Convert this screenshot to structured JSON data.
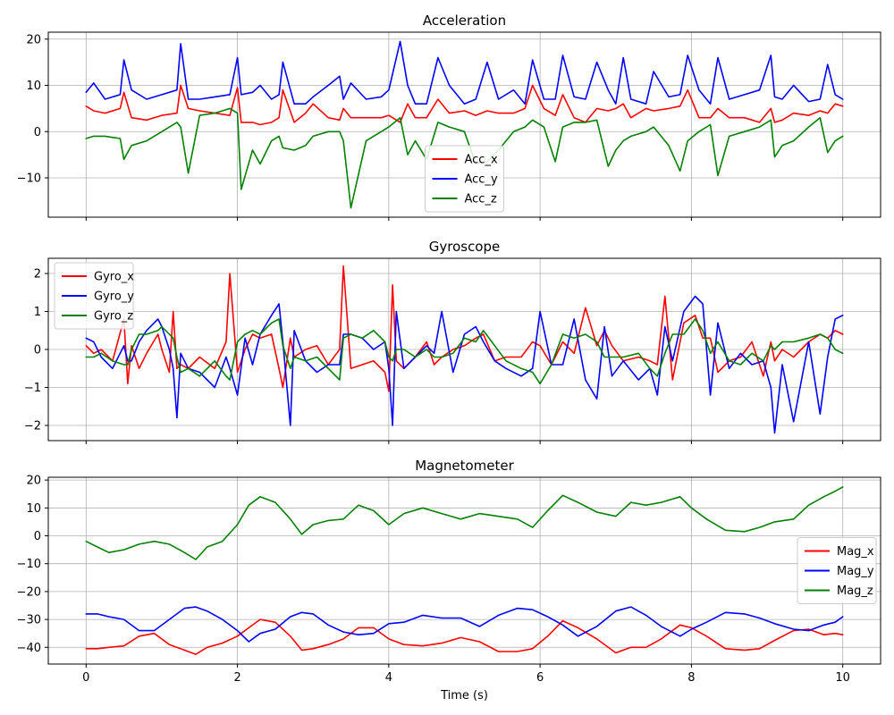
{
  "chart_data": [
    {
      "type": "line",
      "title": "Acceleration",
      "xlabel": "",
      "ylabel": "",
      "xlim": [
        -0.5,
        10.5
      ],
      "ylim": [
        -18.5,
        21.5
      ],
      "xticks": [
        0,
        2,
        4,
        6,
        8,
        10
      ],
      "show_xtick_labels": false,
      "yticks": [
        -10,
        0,
        10,
        20
      ],
      "ytick_labels": [
        "−10",
        "0",
        "10",
        "20"
      ],
      "legend_position": "lower-center",
      "grid": true,
      "x": [
        0,
        0.1,
        0.25,
        0.45,
        0.5,
        0.6,
        0.8,
        1.0,
        1.2,
        1.25,
        1.35,
        1.5,
        1.7,
        1.9,
        2.0,
        2.05,
        2.2,
        2.3,
        2.45,
        2.55,
        2.6,
        2.75,
        2.9,
        3.0,
        3.2,
        3.35,
        3.4,
        3.5,
        3.7,
        3.9,
        4.0,
        4.15,
        4.25,
        4.35,
        4.5,
        4.65,
        4.8,
        5.0,
        5.15,
        5.3,
        5.45,
        5.65,
        5.8,
        5.9,
        6.05,
        6.2,
        6.3,
        6.45,
        6.6,
        6.75,
        6.9,
        7.0,
        7.1,
        7.2,
        7.4,
        7.5,
        7.7,
        7.85,
        7.95,
        8.1,
        8.25,
        8.35,
        8.5,
        8.7,
        8.9,
        9.05,
        9.1,
        9.2,
        9.35,
        9.55,
        9.7,
        9.8,
        9.9,
        10.0
      ],
      "series": [
        {
          "name": "Acc_x",
          "color": "#ff0000",
          "values": [
            5.5,
            4.5,
            4.0,
            5.0,
            8.5,
            3.0,
            2.5,
            3.5,
            4.0,
            10.0,
            5.0,
            4.5,
            4.0,
            3.5,
            9.5,
            2.0,
            2.0,
            1.5,
            2.0,
            3.0,
            9.0,
            2.0,
            4.0,
            6.0,
            3.0,
            2.5,
            5.0,
            3.0,
            3.0,
            3.0,
            3.5,
            2.0,
            6.0,
            3.0,
            3.0,
            7.0,
            4.0,
            4.5,
            3.5,
            4.5,
            4.0,
            4.0,
            5.0,
            10.0,
            5.0,
            3.5,
            8.0,
            3.0,
            2.0,
            5.0,
            4.5,
            5.0,
            6.0,
            3.0,
            5.0,
            4.5,
            5.0,
            5.5,
            9.0,
            3.0,
            3.0,
            5.0,
            3.0,
            3.0,
            2.0,
            5.0,
            2.0,
            2.5,
            4.0,
            3.5,
            4.5,
            4.0,
            6.0,
            5.5
          ]
        },
        {
          "name": "Acc_y",
          "color": "#0000ff",
          "values": [
            8.5,
            10.5,
            7.0,
            8.0,
            15.5,
            9.0,
            7.0,
            8.0,
            9.0,
            19.0,
            7.0,
            7.0,
            7.5,
            8.0,
            16.0,
            8.0,
            8.5,
            10.0,
            7.0,
            8.0,
            15.0,
            6.0,
            6.0,
            7.5,
            10.0,
            12.0,
            7.0,
            10.5,
            7.0,
            7.5,
            9.0,
            19.5,
            10.0,
            6.0,
            6.0,
            16.0,
            10.0,
            6.0,
            7.0,
            15.0,
            7.0,
            9.0,
            6.0,
            15.5,
            7.0,
            7.0,
            16.5,
            7.5,
            7.0,
            15.0,
            9.0,
            6.0,
            16.0,
            7.0,
            6.0,
            13.0,
            7.5,
            8.0,
            16.5,
            9.0,
            6.0,
            16.0,
            7.0,
            8.0,
            9.0,
            16.5,
            7.5,
            7.0,
            10.0,
            6.5,
            7.0,
            14.5,
            8.0,
            7.0
          ]
        },
        {
          "name": "Acc_z",
          "color": "#008000",
          "values": [
            -1.5,
            -1.0,
            -1.0,
            -1.5,
            -6.0,
            -3.0,
            -2.0,
            0.0,
            2.0,
            1.0,
            -9.0,
            3.5,
            4.0,
            5.0,
            4.0,
            -12.5,
            -4.0,
            -7.0,
            -2.0,
            -1.0,
            -3.5,
            -4.0,
            -3.0,
            -1.0,
            0.0,
            0.0,
            -2.0,
            -16.5,
            -2.0,
            0.0,
            1.0,
            3.0,
            -5.0,
            -2.0,
            -6.0,
            2.0,
            1.0,
            0.0,
            -7.0,
            -6.5,
            -4.0,
            0.0,
            1.0,
            2.5,
            1.0,
            -6.5,
            1.0,
            2.0,
            2.0,
            2.5,
            -7.5,
            -4.0,
            -2.0,
            -1.0,
            0.0,
            1.0,
            -3.0,
            -8.5,
            -2.0,
            0.0,
            1.5,
            -9.5,
            -1.0,
            0.0,
            1.0,
            2.5,
            -5.5,
            -3.0,
            -2.0,
            1.0,
            3.0,
            -4.5,
            -2.0,
            -1.0
          ]
        }
      ]
    },
    {
      "type": "line",
      "title": "Gyroscope",
      "xlabel": "",
      "ylabel": "",
      "xlim": [
        -0.5,
        10.5
      ],
      "ylim": [
        -2.4,
        2.4
      ],
      "xticks": [
        0,
        2,
        4,
        6,
        8,
        10
      ],
      "show_xtick_labels": false,
      "yticks": [
        -2,
        -1,
        0,
        1,
        2
      ],
      "ytick_labels": [
        "−2",
        "−1",
        "0",
        "1",
        "2"
      ],
      "legend_position": "top-left",
      "grid": true,
      "x": [
        0,
        0.1,
        0.2,
        0.35,
        0.5,
        0.55,
        0.6,
        0.7,
        0.8,
        0.95,
        1.0,
        1.1,
        1.15,
        1.2,
        1.25,
        1.35,
        1.5,
        1.7,
        1.85,
        1.9,
        2.0,
        2.1,
        2.2,
        2.3,
        2.45,
        2.55,
        2.6,
        2.7,
        2.75,
        2.9,
        3.05,
        3.2,
        3.35,
        3.4,
        3.5,
        3.65,
        3.8,
        3.95,
        4.0,
        4.05,
        4.1,
        4.2,
        4.35,
        4.5,
        4.6,
        4.7,
        4.85,
        5.0,
        5.15,
        5.25,
        5.4,
        5.55,
        5.75,
        5.9,
        6.0,
        6.15,
        6.3,
        6.45,
        6.6,
        6.75,
        6.85,
        6.95,
        7.1,
        7.3,
        7.45,
        7.55,
        7.65,
        7.75,
        7.9,
        8.05,
        8.15,
        8.25,
        8.35,
        8.5,
        8.65,
        8.8,
        8.95,
        9.05,
        9.1,
        9.2,
        9.35,
        9.55,
        9.7,
        9.8,
        9.9,
        10.0
      ],
      "series": [
        {
          "name": "Gyro_x",
          "color": "#ff0000",
          "values": [
            0.1,
            -0.1,
            0.0,
            -0.3,
            0.8,
            -0.9,
            0.1,
            -0.5,
            -0.1,
            0.4,
            0.0,
            -0.6,
            1.0,
            -0.5,
            -0.4,
            -0.5,
            -0.2,
            -0.5,
            0.2,
            2.0,
            -0.6,
            0.0,
            0.4,
            0.3,
            0.4,
            -0.5,
            -1.0,
            0.3,
            -0.2,
            0.0,
            0.1,
            -0.4,
            0.0,
            2.2,
            -0.5,
            -0.4,
            -0.3,
            -0.6,
            -1.1,
            1.7,
            -0.3,
            -0.5,
            -0.2,
            0.2,
            -0.4,
            -0.2,
            0.0,
            0.1,
            0.3,
            0.4,
            -0.3,
            -0.2,
            -0.2,
            0.2,
            0.1,
            -0.4,
            0.2,
            -0.1,
            1.1,
            0.1,
            0.5,
            0.1,
            -0.3,
            -0.2,
            -0.3,
            -0.4,
            1.4,
            -0.8,
            0.7,
            0.9,
            0.3,
            0.3,
            -0.6,
            -0.3,
            -0.2,
            0.2,
            -0.7,
            0.2,
            -0.3,
            0.0,
            -0.2,
            0.2,
            0.4,
            0.3,
            0.5,
            0.4
          ]
        },
        {
          "name": "Gyro_y",
          "color": "#0000ff",
          "values": [
            0.3,
            0.2,
            -0.2,
            -0.5,
            0.1,
            -0.3,
            -0.3,
            0.2,
            0.5,
            0.8,
            0.6,
            0.0,
            -0.5,
            -1.8,
            -0.1,
            -0.5,
            -0.6,
            -1.0,
            -0.2,
            -0.5,
            -1.2,
            0.3,
            -0.4,
            0.4,
            0.9,
            1.2,
            0.2,
            -2.0,
            0.5,
            -0.3,
            -0.6,
            -0.4,
            -0.4,
            0.4,
            0.4,
            0.3,
            0.0,
            0.2,
            -0.5,
            -2.0,
            1.0,
            -0.5,
            -0.2,
            0.1,
            -0.1,
            1.0,
            -0.6,
            0.4,
            0.6,
            0.2,
            -0.3,
            -0.5,
            -0.7,
            -0.5,
            1.0,
            -0.4,
            -0.4,
            0.8,
            -0.8,
            -1.3,
            0.6,
            -0.7,
            -0.3,
            -0.8,
            -0.5,
            -1.2,
            0.6,
            -0.3,
            1.0,
            1.4,
            1.2,
            -1.2,
            0.7,
            -0.5,
            -0.1,
            -0.4,
            -0.3,
            -1.0,
            -2.2,
            -0.4,
            -1.9,
            0.2,
            -1.7,
            -0.2,
            0.8,
            0.9
          ]
        },
        {
          "name": "Gyro_z",
          "color": "#008000",
          "values": [
            -0.2,
            -0.2,
            -0.1,
            -0.3,
            -0.4,
            -0.4,
            0.0,
            0.4,
            0.4,
            0.5,
            0.6,
            0.4,
            0.3,
            -0.2,
            -0.6,
            -0.5,
            -0.7,
            -0.3,
            -0.7,
            -0.8,
            0.2,
            0.4,
            0.5,
            0.4,
            0.7,
            0.8,
            0.1,
            -0.5,
            -0.2,
            -0.3,
            -0.2,
            -0.5,
            -0.8,
            0.3,
            0.4,
            0.3,
            0.5,
            0.2,
            -0.2,
            -0.3,
            0.0,
            0.0,
            -0.2,
            0.0,
            -0.2,
            -0.2,
            -0.1,
            0.3,
            0.2,
            0.5,
            0.1,
            -0.3,
            -0.5,
            -0.6,
            -0.9,
            -0.4,
            0.4,
            0.3,
            0.4,
            0.2,
            -0.2,
            -0.2,
            -0.2,
            -0.1,
            -0.5,
            -0.7,
            -0.1,
            0.4,
            0.4,
            0.8,
            0.5,
            -0.1,
            0.2,
            -0.3,
            -0.4,
            -0.1,
            -0.3,
            0.1,
            0.0,
            0.2,
            0.2,
            0.3,
            0.4,
            0.3,
            0.0,
            -0.1
          ]
        }
      ]
    },
    {
      "type": "line",
      "title": "Magnetometer",
      "xlabel": "Time (s)",
      "ylabel": "",
      "xlim": [
        -0.5,
        10.5
      ],
      "ylim": [
        -46,
        21
      ],
      "xticks": [
        0,
        2,
        4,
        6,
        8,
        10
      ],
      "xtick_labels": [
        "0",
        "2",
        "4",
        "6",
        "8",
        "10"
      ],
      "show_xtick_labels": true,
      "yticks": [
        -40,
        -30,
        -20,
        -10,
        0,
        10,
        20
      ],
      "ytick_labels": [
        "−40",
        "−30",
        "−20",
        "−10",
        "0",
        "10",
        "20"
      ],
      "legend_position": "center-right",
      "grid": true,
      "x": [
        0,
        0.15,
        0.3,
        0.5,
        0.7,
        0.9,
        1.1,
        1.3,
        1.45,
        1.6,
        1.8,
        2.0,
        2.15,
        2.3,
        2.5,
        2.7,
        2.85,
        3.0,
        3.2,
        3.4,
        3.6,
        3.8,
        4.0,
        4.2,
        4.45,
        4.7,
        4.95,
        5.2,
        5.45,
        5.7,
        5.9,
        6.1,
        6.3,
        6.5,
        6.75,
        7.0,
        7.2,
        7.4,
        7.6,
        7.85,
        8.0,
        8.2,
        8.45,
        8.7,
        8.9,
        9.1,
        9.35,
        9.55,
        9.75,
        9.9,
        10.0
      ],
      "series": [
        {
          "name": "Mag_x",
          "color": "#ff0000",
          "values": [
            -40.5,
            -40.5,
            -40.0,
            -39.5,
            -36.0,
            -35.0,
            -39.0,
            -41.0,
            -42.5,
            -40.0,
            -38.5,
            -36.0,
            -33.0,
            -30.0,
            -31.0,
            -36.0,
            -41.0,
            -40.5,
            -39.0,
            -37.0,
            -33.0,
            -33.0,
            -37.0,
            -39.0,
            -39.5,
            -38.5,
            -36.5,
            -38.0,
            -41.5,
            -41.5,
            -40.5,
            -36.0,
            -30.5,
            -33.0,
            -37.0,
            -42.0,
            -40.0,
            -40.0,
            -37.0,
            -32.0,
            -33.0,
            -36.0,
            -40.5,
            -41.0,
            -40.5,
            -37.5,
            -34.0,
            -33.5,
            -35.5,
            -35.0,
            -35.5
          ]
        },
        {
          "name": "Mag_y",
          "color": "#0000ff",
          "values": [
            -28.0,
            -28.0,
            -29.0,
            -30.0,
            -34.0,
            -34.0,
            -30.0,
            -26.0,
            -25.5,
            -27.0,
            -30.0,
            -34.0,
            -38.0,
            -35.0,
            -33.5,
            -29.0,
            -27.5,
            -28.0,
            -32.0,
            -34.5,
            -35.5,
            -35.0,
            -31.5,
            -31.0,
            -28.5,
            -29.5,
            -29.5,
            -32.5,
            -28.5,
            -26.0,
            -26.5,
            -29.0,
            -32.0,
            -36.0,
            -32.5,
            -27.0,
            -25.5,
            -28.5,
            -32.5,
            -36.0,
            -33.5,
            -31.0,
            -27.5,
            -28.0,
            -29.5,
            -31.5,
            -33.5,
            -34.0,
            -32.0,
            -31.0,
            -29.0
          ]
        },
        {
          "name": "Mag_z",
          "color": "#008000",
          "values": [
            -2.0,
            -4.0,
            -6.0,
            -5.0,
            -3.0,
            -2.0,
            -3.0,
            -6.0,
            -8.5,
            -4.0,
            -2.0,
            4.0,
            11.0,
            14.0,
            12.0,
            6.0,
            0.5,
            4.0,
            5.5,
            6.0,
            11.0,
            9.0,
            4.0,
            8.0,
            10.0,
            8.0,
            6.0,
            8.0,
            7.0,
            6.0,
            3.0,
            9.0,
            14.5,
            12.0,
            8.5,
            7.0,
            12.0,
            11.0,
            12.0,
            14.0,
            10.0,
            6.0,
            2.0,
            1.5,
            3.0,
            5.0,
            6.0,
            11.0,
            14.0,
            16.0,
            17.5
          ]
        }
      ]
    }
  ]
}
